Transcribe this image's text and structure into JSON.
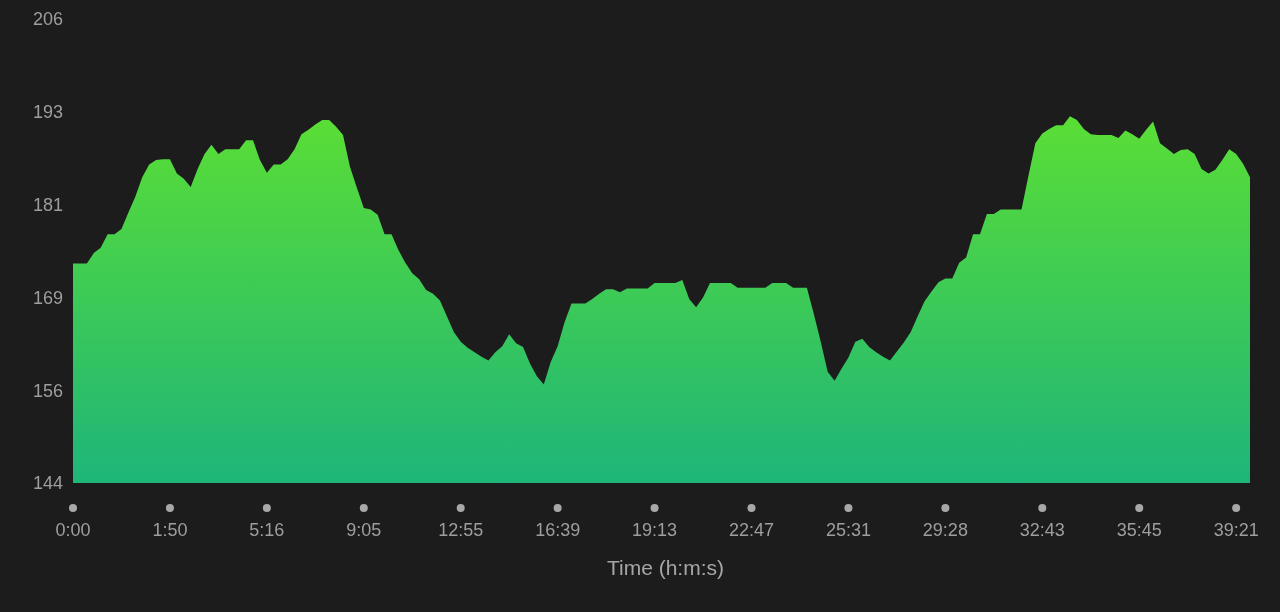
{
  "chart_data": {
    "type": "area",
    "xlabel": "Time (h:m:s)",
    "categories": [
      "0:00",
      null,
      null,
      null,
      null,
      null,
      null,
      null,
      null,
      null,
      null,
      null,
      null,
      null,
      "1:50",
      null,
      null,
      null,
      null,
      null,
      null,
      null,
      null,
      null,
      null,
      null,
      null,
      null,
      "5:16",
      null,
      null,
      null,
      null,
      null,
      null,
      null,
      null,
      null,
      null,
      null,
      null,
      null,
      "9:05",
      null,
      null,
      null,
      null,
      null,
      null,
      null,
      null,
      null,
      null,
      null,
      null,
      null,
      "12:55",
      null,
      null,
      null,
      null,
      null,
      null,
      null,
      null,
      null,
      null,
      null,
      null,
      null,
      "16:39",
      null,
      null,
      null,
      null,
      null,
      null,
      null,
      null,
      null,
      null,
      null,
      null,
      null,
      "19:13",
      null,
      null,
      null,
      null,
      null,
      null,
      null,
      null,
      null,
      null,
      null,
      null,
      null,
      "22:47",
      null,
      null,
      null,
      null,
      null,
      null,
      null,
      null,
      null,
      null,
      null,
      null,
      null,
      "25:31",
      null,
      null,
      null,
      null,
      null,
      null,
      null,
      null,
      null,
      null,
      null,
      null,
      null,
      "29:28",
      null,
      null,
      null,
      null,
      null,
      null,
      null,
      null,
      null,
      null,
      null,
      null,
      null,
      "32:43",
      null,
      null,
      null,
      null,
      null,
      null,
      null,
      null,
      null,
      null,
      null,
      null,
      null,
      "35:45",
      null,
      null,
      null,
      null,
      null,
      null,
      null,
      null,
      null,
      null,
      null,
      null,
      null,
      "39:21",
      null,
      null
    ],
    "values": [
      173.2,
      173.2,
      173.2,
      174.6,
      175.3,
      177.1,
      177.1,
      177.8,
      180.0,
      182.1,
      184.7,
      186.4,
      187.0,
      187.1,
      187.1,
      185.2,
      184.5,
      183.4,
      185.8,
      187.8,
      189.0,
      187.8,
      188.4,
      188.4,
      188.4,
      189.6,
      189.6,
      187.0,
      185.3,
      186.4,
      186.4,
      187.1,
      188.4,
      190.4,
      191.0,
      191.7,
      192.3,
      192.3,
      191.4,
      190.3,
      186.1,
      183.3,
      180.6,
      180.4,
      179.7,
      177.1,
      177.1,
      175.0,
      173.3,
      171.9,
      171.1,
      169.7,
      169.2,
      168.3,
      166.2,
      164.1,
      162.8,
      162.0,
      161.4,
      160.8,
      160.3,
      161.4,
      162.2,
      163.8,
      162.6,
      162.1,
      159.9,
      158.2,
      157.1,
      160.1,
      162.2,
      165.4,
      167.9,
      167.9,
      167.9,
      168.5,
      169.2,
      169.8,
      169.8,
      169.4,
      169.9,
      169.9,
      169.9,
      169.9,
      170.6,
      170.6,
      170.6,
      170.6,
      171.0,
      168.5,
      167.4,
      168.7,
      170.6,
      170.6,
      170.6,
      170.6,
      170.0,
      170.0,
      170.0,
      170.0,
      170.0,
      170.6,
      170.6,
      170.6,
      170.0,
      170.0,
      170.0,
      166.5,
      162.8,
      158.8,
      157.6,
      159.2,
      160.7,
      162.8,
      163.2,
      162.1,
      161.4,
      160.8,
      160.3,
      161.5,
      162.7,
      164.1,
      166.2,
      168.2,
      169.5,
      170.7,
      171.2,
      171.2,
      173.3,
      174.0,
      177.1,
      177.1,
      179.8,
      179.8,
      180.4,
      180.4,
      180.4,
      180.4,
      184.9,
      189.2,
      190.5,
      191.1,
      191.6,
      191.6,
      192.8,
      192.3,
      191.1,
      190.4,
      190.3,
      190.3,
      190.3,
      189.9,
      190.9,
      190.4,
      189.8,
      191.0,
      192.1,
      189.2,
      188.5,
      187.8,
      188.3,
      188.4,
      187.8,
      185.8,
      185.2,
      185.7,
      187.0,
      188.4,
      187.8,
      186.5,
      184.7
    ],
    "color": "#5ade35",
    "ylim": [
      144,
      205.75
    ],
    "yticks": [
      144,
      {
        "value": 156.35,
        "label": "156"
      },
      {
        "value": 168.7,
        "label": "169"
      },
      {
        "value": 181.05,
        "label": "181"
      },
      {
        "value": 193.4,
        "label": "193"
      },
      {
        "value": 205.75,
        "label": "206"
      }
    ]
  }
}
